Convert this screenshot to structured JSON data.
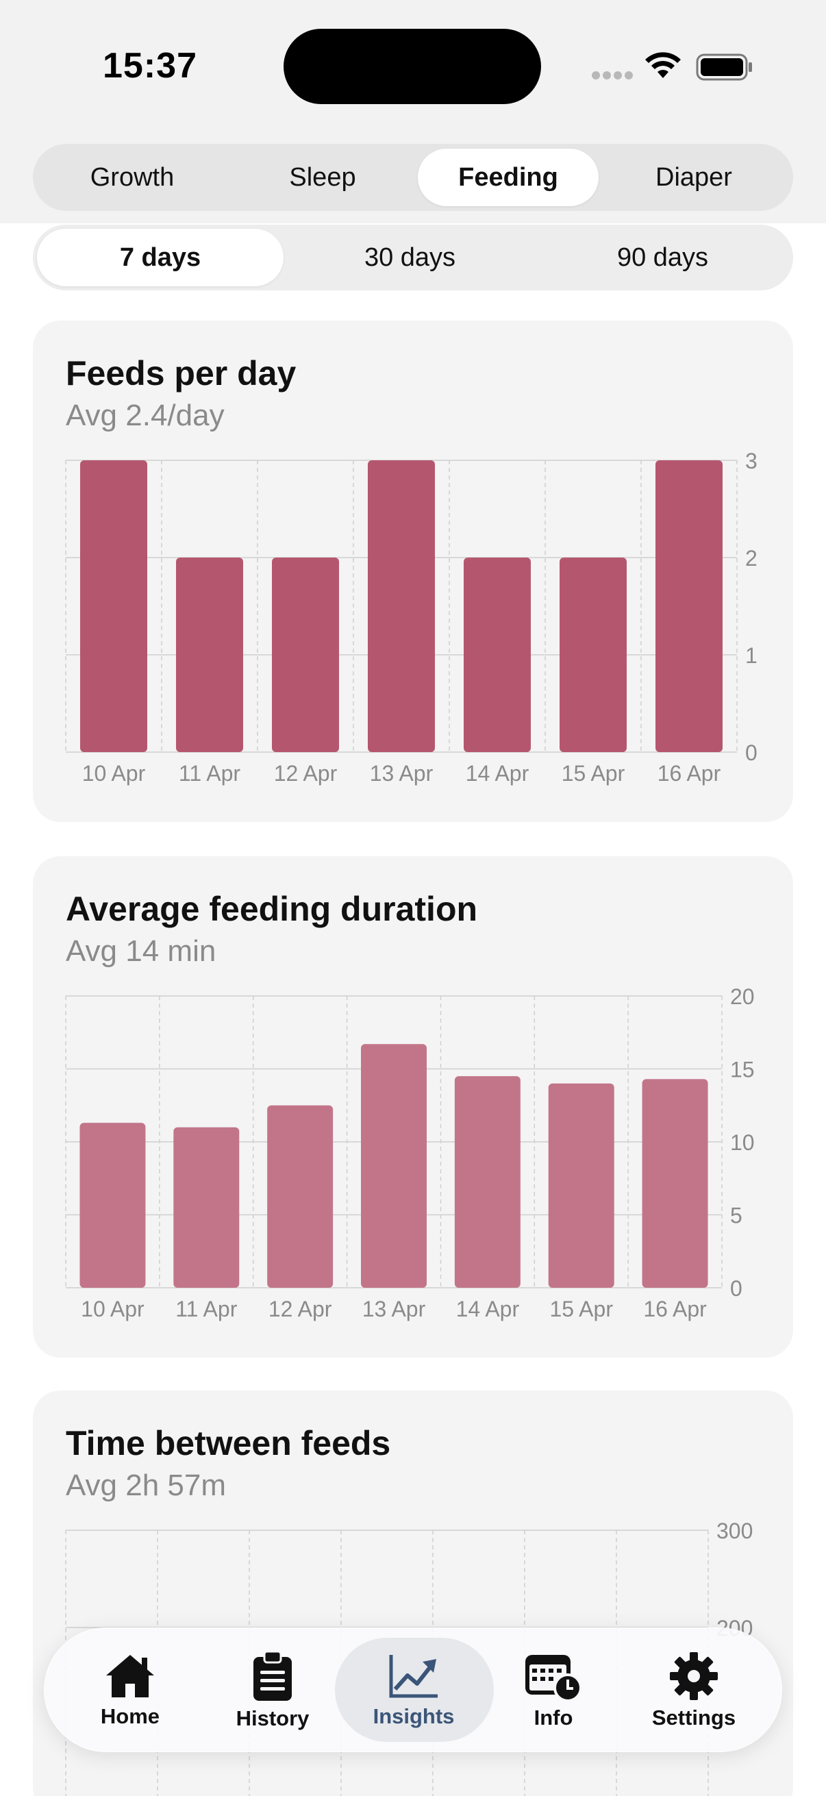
{
  "status_bar": {
    "time": "15:37"
  },
  "tabs": [
    {
      "label": "Growth",
      "active": false
    },
    {
      "label": "Sleep",
      "active": false
    },
    {
      "label": "Feeding",
      "active": true
    },
    {
      "label": "Diaper",
      "active": false
    }
  ],
  "ranges": [
    {
      "label": "7 days",
      "active": true
    },
    {
      "label": "30 days",
      "active": false
    },
    {
      "label": "90 days",
      "active": false
    }
  ],
  "colors": {
    "bar_dark": "#b5566f",
    "bar_light": "#c27589",
    "grid": "#cfcfcf",
    "axis_text": "#8a8a8a"
  },
  "cards": [
    {
      "title": "Feeds per day",
      "subtitle": "Avg 2.4/day",
      "chart_data": {
        "type": "bar",
        "categories": [
          "10 Apr",
          "11 Apr",
          "12 Apr",
          "13 Apr",
          "14 Apr",
          "15 Apr",
          "16 Apr"
        ],
        "values": [
          3,
          2,
          2,
          3,
          2,
          2,
          3
        ],
        "yticks": [
          "0",
          "1",
          "2",
          "3"
        ],
        "ylim": [
          0,
          3
        ],
        "ytick_values": [
          0,
          1,
          2,
          3
        ],
        "grid": true
      }
    },
    {
      "title": "Average feeding duration",
      "subtitle": "Avg 14 min",
      "chart_data": {
        "type": "bar",
        "categories": [
          "10 Apr",
          "11 Apr",
          "12 Apr",
          "13 Apr",
          "14 Apr",
          "15 Apr",
          "16 Apr"
        ],
        "values": [
          11.3,
          11,
          12.5,
          16.7,
          14.5,
          14,
          14.3
        ],
        "yticks": [
          "0",
          "5",
          "10",
          "15",
          "20"
        ],
        "ylim": [
          0,
          20
        ],
        "ytick_values": [
          0,
          5,
          10,
          15,
          20
        ],
        "grid": true
      }
    },
    {
      "title": "Time between feeds",
      "subtitle": "Avg 2h 57m",
      "chart_data": {
        "type": "bar",
        "yticks": [
          "300",
          "200"
        ],
        "ytick_values": [
          300,
          200
        ],
        "grid": true
      }
    }
  ],
  "tabbar": [
    {
      "label": "Home",
      "icon": "house-icon",
      "active": false
    },
    {
      "label": "History",
      "icon": "clipboard-icon",
      "active": false
    },
    {
      "label": "Insights",
      "icon": "chart-up-icon",
      "active": true
    },
    {
      "label": "Info",
      "icon": "calendar-clock-icon",
      "active": false
    },
    {
      "label": "Settings",
      "icon": "gear-icon",
      "active": false
    }
  ]
}
